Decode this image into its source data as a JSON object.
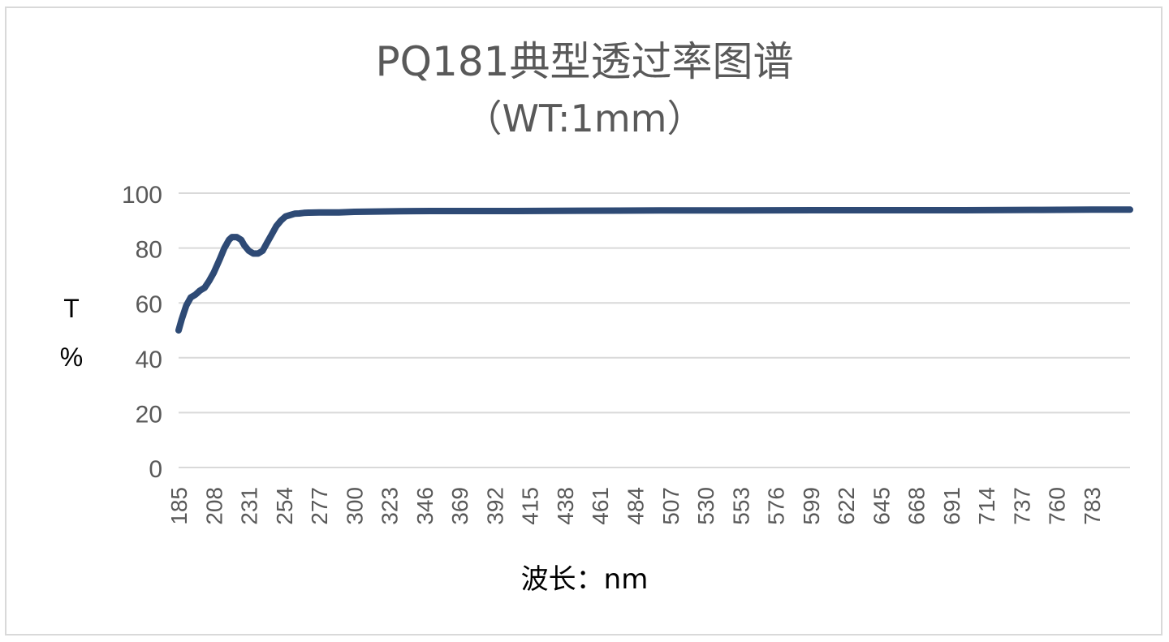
{
  "chart_data": {
    "type": "line",
    "title": "PQ181典型透过率图谱",
    "subtitle": "（WT:1mm）",
    "xlabel": "波长：nm",
    "ylabel_line1": "T",
    "ylabel_line2": "%",
    "ylim": [
      0,
      100
    ],
    "xlim": [
      185,
      808
    ],
    "grid": true,
    "y_ticks": [
      "0",
      "20",
      "40",
      "60",
      "80",
      "100"
    ],
    "x_ticks": [
      "185",
      "208",
      "231",
      "254",
      "277",
      "300",
      "323",
      "346",
      "369",
      "392",
      "415",
      "438",
      "461",
      "484",
      "507",
      "530",
      "553",
      "576",
      "599",
      "622",
      "645",
      "668",
      "691",
      "714",
      "737",
      "760",
      "783"
    ],
    "series": [
      {
        "color": "#2e4a75",
        "x": [
          185,
          187,
          190,
          193,
          196,
          199,
          202,
          205,
          208,
          212,
          215,
          218,
          220,
          223,
          226,
          228,
          231,
          234,
          237,
          240,
          243,
          246,
          249,
          252,
          255,
          258,
          261,
          264,
          267,
          270,
          277,
          290,
          300,
          315,
          330,
          350,
          370,
          400,
          450,
          500,
          550,
          600,
          650,
          700,
          750,
          783,
          808
        ],
        "y": [
          50,
          54,
          59,
          62,
          63,
          64.5,
          65.5,
          68,
          71,
          76,
          80,
          83,
          84,
          84,
          83,
          81,
          79,
          78,
          78,
          79,
          82,
          85,
          88,
          90,
          91.5,
          92,
          92.5,
          92.6,
          92.8,
          92.9,
          93,
          93,
          93.2,
          93.3,
          93.4,
          93.5,
          93.5,
          93.5,
          93.6,
          93.7,
          93.7,
          93.8,
          93.8,
          93.8,
          93.9,
          94,
          94
        ]
      }
    ]
  }
}
